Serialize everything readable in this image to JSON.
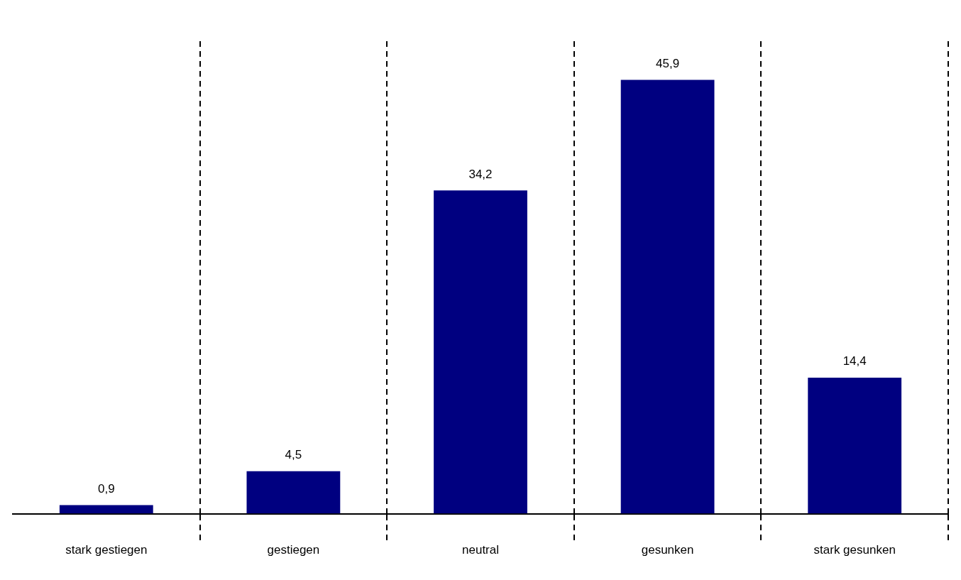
{
  "chart_data": {
    "type": "bar",
    "categories": [
      "stark gestiegen",
      "gestiegen",
      "neutral",
      "gesunken",
      "stark gesunken"
    ],
    "values": [
      0.9,
      4.5,
      34.2,
      45.9,
      14.4
    ],
    "value_labels": [
      "0,9",
      "4,5",
      "34,2",
      "45,9",
      "14,4"
    ],
    "color": "#000080",
    "grid": "x"
  }
}
